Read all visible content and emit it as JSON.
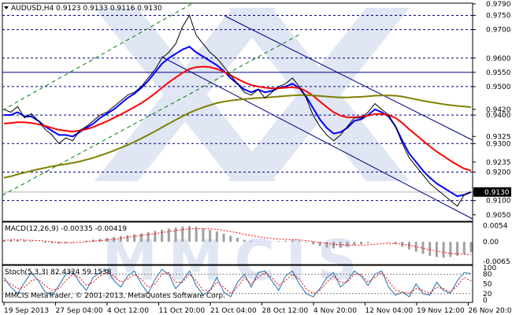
{
  "header": {
    "symbol_line": "AUDUSD,H4  0.9123 0.9133 0.9116 0.9130"
  },
  "chart_data": [
    {
      "type": "line",
      "panel": "price",
      "title": "AUDUSD,H4  0.9123 0.9133 0.9116 0.9130",
      "ylim": [
        0.903,
        0.979
      ],
      "y_ticks": [
        "0.9790",
        "0.9750",
        "0.9700",
        "0.9600",
        "0.9550",
        "0.9500",
        "0.9420",
        "0.9400",
        "0.9325",
        "0.9300",
        "0.9235",
        "0.9200",
        "0.9130",
        "0.9100",
        "0.9050"
      ],
      "h_levels": [
        0.975,
        0.97,
        0.96,
        0.955,
        0.95,
        0.94,
        0.93,
        0.92,
        0.91
      ],
      "solid_level": 0.955,
      "current_price": {
        "label": "0.9130",
        "value": 0.913
      },
      "x_labels": [
        "19 Sep 2013",
        "27 Sep 04:00",
        "4 Oct 12:00",
        "11 Oct 20:00",
        "21 Oct 04:00",
        "28 Oct 12:00",
        "4 Nov 20:00",
        "12 Nov 04:00",
        "19 Nov 12:00",
        "26 Nov 20:00"
      ],
      "price_path": [
        0.942,
        0.941,
        0.943,
        0.939,
        0.9405,
        0.938,
        0.935,
        0.933,
        0.93,
        0.932,
        0.931,
        0.9345,
        0.936,
        0.938,
        0.94,
        0.941,
        0.943,
        0.945,
        0.947,
        0.948,
        0.95,
        0.953,
        0.956,
        0.96,
        0.962,
        0.965,
        0.971,
        0.975,
        0.968,
        0.965,
        0.962,
        0.96,
        0.957,
        0.954,
        0.951,
        0.948,
        0.947,
        0.949,
        0.946,
        0.948,
        0.95,
        0.951,
        0.953,
        0.95,
        0.946,
        0.94,
        0.936,
        0.933,
        0.931,
        0.933,
        0.936,
        0.939,
        0.939,
        0.941,
        0.944,
        0.942,
        0.94,
        0.936,
        0.93,
        0.925,
        0.922,
        0.919,
        0.916,
        0.914,
        0.912,
        0.91,
        0.908,
        0.912,
        0.913
      ],
      "series": [
        {
          "color": "#0000ff",
          "values": [
            0.94,
            0.94,
            0.941,
            0.9395,
            0.9395,
            0.938,
            0.936,
            0.9345,
            0.933,
            0.933,
            0.9325,
            0.934,
            0.9355,
            0.937,
            0.939,
            0.9405,
            0.942,
            0.944,
            0.946,
            0.9475,
            0.9495,
            0.952,
            0.955,
            0.958,
            0.96,
            0.9615,
            0.963,
            0.964,
            0.962,
            0.9605,
            0.959,
            0.9575,
            0.9555,
            0.953,
            0.951,
            0.949,
            0.948,
            0.949,
            0.948,
            0.9485,
            0.9495,
            0.95,
            0.951,
            0.9495,
            0.9465,
            0.9425,
            0.9385,
            0.9355,
            0.9335,
            0.934,
            0.9355,
            0.938,
            0.9385,
            0.94,
            0.942,
            0.941,
            0.9395,
            0.936,
            0.931,
            0.9265,
            0.9235,
            0.9205,
            0.918,
            0.916,
            0.9145,
            0.913,
            0.9115,
            0.912,
            0.913
          ]
        },
        {
          "color": "#ff0000",
          "values": [
            0.937,
            0.9372,
            0.9375,
            0.9375,
            0.9372,
            0.9368,
            0.9362,
            0.9355,
            0.9348,
            0.9345,
            0.9342,
            0.9345,
            0.935,
            0.9358,
            0.9368,
            0.9378,
            0.939,
            0.9402,
            0.9415,
            0.9428,
            0.9442,
            0.9458,
            0.9476,
            0.9496,
            0.9515,
            0.9532,
            0.9548,
            0.9562,
            0.9568,
            0.957,
            0.9568,
            0.9562,
            0.9552,
            0.954,
            0.9527,
            0.9515,
            0.9505,
            0.95,
            0.9496,
            0.9494,
            0.9494,
            0.9496,
            0.9498,
            0.9494,
            0.9484,
            0.9468,
            0.9448,
            0.9428,
            0.941,
            0.9398,
            0.9392,
            0.9392,
            0.9394,
            0.9398,
            0.9404,
            0.9404,
            0.94,
            0.939,
            0.9372,
            0.935,
            0.933,
            0.931,
            0.929,
            0.9272,
            0.9256,
            0.924,
            0.9225,
            0.9212,
            0.9205
          ]
        },
        {
          "color": "#808000",
          "values": [
            0.918,
            0.9185,
            0.9192,
            0.9198,
            0.9204,
            0.921,
            0.9215,
            0.922,
            0.9224,
            0.9228,
            0.9232,
            0.9237,
            0.9243,
            0.925,
            0.9258,
            0.9266,
            0.9275,
            0.9285,
            0.9295,
            0.9306,
            0.9318,
            0.933,
            0.9343,
            0.9357,
            0.937,
            0.9383,
            0.9396,
            0.9408,
            0.9418,
            0.9427,
            0.9435,
            0.9442,
            0.9447,
            0.9451,
            0.9454,
            0.9456,
            0.9458,
            0.946,
            0.9461,
            0.9463,
            0.9465,
            0.9467,
            0.9469,
            0.947,
            0.947,
            0.9469,
            0.9467,
            0.9465,
            0.9463,
            0.9462,
            0.9462,
            0.9463,
            0.9464,
            0.9466,
            0.9468,
            0.9469,
            0.9469,
            0.9468,
            0.9465,
            0.946,
            0.9455,
            0.945,
            0.9446,
            0.9442,
            0.9438,
            0.9435,
            0.9432,
            0.943,
            0.9428
          ]
        }
      ]
    },
    {
      "type": "bar",
      "panel": "macd",
      "title": "MACD(12,26,9) -0.00335 -0.00419",
      "ylim": [
        -0.007,
        0.006
      ],
      "y_ticks": [
        "0.0054",
        "0.00",
        "-0.0065"
      ],
      "values": [
        0.0006,
        0.0008,
        0.0007,
        0.0005,
        0.0003,
        0.0,
        -0.0003,
        -0.0005,
        -0.0006,
        -0.0004,
        -0.0002,
        0.0001,
        0.0004,
        0.0007,
        0.001,
        0.0013,
        0.0016,
        0.0019,
        0.0022,
        0.0025,
        0.0028,
        0.0032,
        0.0036,
        0.004,
        0.0044,
        0.0047,
        0.005,
        0.0052,
        0.0049,
        0.0045,
        0.004,
        0.0034,
        0.0027,
        0.002,
        0.0013,
        0.0007,
        0.0003,
        0.0001,
        0.0,
        0.0001,
        0.0002,
        0.0003,
        0.0004,
        0.0002,
        -0.0002,
        -0.0008,
        -0.0014,
        -0.0019,
        -0.0022,
        -0.002,
        -0.0016,
        -0.0011,
        -0.0008,
        -0.0004,
        0.0,
        0.0,
        -0.0002,
        -0.0008,
        -0.0016,
        -0.0025,
        -0.0033,
        -0.004,
        -0.0046,
        -0.005,
        -0.0052,
        -0.005,
        -0.0046,
        -0.004,
        -0.0034
      ],
      "signal": [
        0.0005,
        0.0006,
        0.0006,
        0.0006,
        0.0005,
        0.0004,
        0.0002,
        0.0,
        -0.0002,
        -0.0003,
        -0.0003,
        -0.0002,
        0.0,
        0.0002,
        0.0004,
        0.0006,
        0.0009,
        0.0012,
        0.0015,
        0.0018,
        0.0021,
        0.0024,
        0.0027,
        0.0031,
        0.0034,
        0.0037,
        0.004,
        0.0043,
        0.0044,
        0.0044,
        0.0043,
        0.0041,
        0.0038,
        0.0034,
        0.003,
        0.0025,
        0.0021,
        0.0017,
        0.0013,
        0.0011,
        0.0009,
        0.0008,
        0.0007,
        0.0006,
        0.0004,
        0.0001,
        -0.0002,
        -0.0005,
        -0.0008,
        -0.001,
        -0.0011,
        -0.0011,
        -0.0011,
        -0.001,
        -0.0008,
        -0.0006,
        -0.0005,
        -0.0006,
        -0.0008,
        -0.0011,
        -0.0016,
        -0.0021,
        -0.0026,
        -0.0031,
        -0.0035,
        -0.0038,
        -0.004,
        -0.0041,
        -0.0042
      ]
    },
    {
      "type": "line",
      "panel": "stochastic",
      "title": "Stoch(5,3,3) 82.4324 59.1538",
      "ylim": [
        0,
        100
      ],
      "y_ticks": [
        "100",
        "80",
        "50",
        "20",
        "0"
      ],
      "series": [
        {
          "color": "#1f6fb0",
          "values": [
            70,
            40,
            20,
            55,
            85,
            60,
            25,
            15,
            45,
            80,
            90,
            55,
            30,
            70,
            85,
            95,
            60,
            40,
            75,
            90,
            50,
            20,
            65,
            95,
            80,
            35,
            60,
            90,
            45,
            15,
            30,
            70,
            25,
            10,
            55,
            80,
            40,
            85,
            90,
            60,
            30,
            75,
            90,
            50,
            20,
            10,
            35,
            70,
            85,
            40,
            60,
            90,
            75,
            45,
            80,
            90,
            40,
            15,
            25,
            10,
            50,
            20,
            15,
            55,
            30,
            20,
            60,
            85,
            82
          ]
        },
        {
          "color": "#ff0000",
          "values": [
            60,
            50,
            35,
            40,
            60,
            65,
            45,
            30,
            35,
            60,
            80,
            70,
            45,
            55,
            75,
            85,
            75,
            55,
            65,
            80,
            65,
            40,
            50,
            80,
            85,
            55,
            55,
            80,
            60,
            30,
            30,
            55,
            40,
            20,
            40,
            70,
            50,
            70,
            85,
            70,
            45,
            60,
            80,
            65,
            35,
            20,
            30,
            55,
            75,
            55,
            55,
            80,
            80,
            55,
            70,
            85,
            60,
            30,
            25,
            20,
            35,
            30,
            20,
            40,
            35,
            25,
            45,
            70,
            59
          ]
        }
      ]
    }
  ],
  "footer": {
    "copyright": "MMCIS MetaTrader, © 2001-2013, MetaQuotes Software Corp."
  },
  "colors": {
    "price_line": "#000000",
    "fast_ma": "#0000ff",
    "mid_ma": "#ff0000",
    "slow_ma": "#808000",
    "level_line": "#000080",
    "channel_up": "#008000",
    "channel_down": "#000080",
    "watermark": "#c8d2ea"
  }
}
